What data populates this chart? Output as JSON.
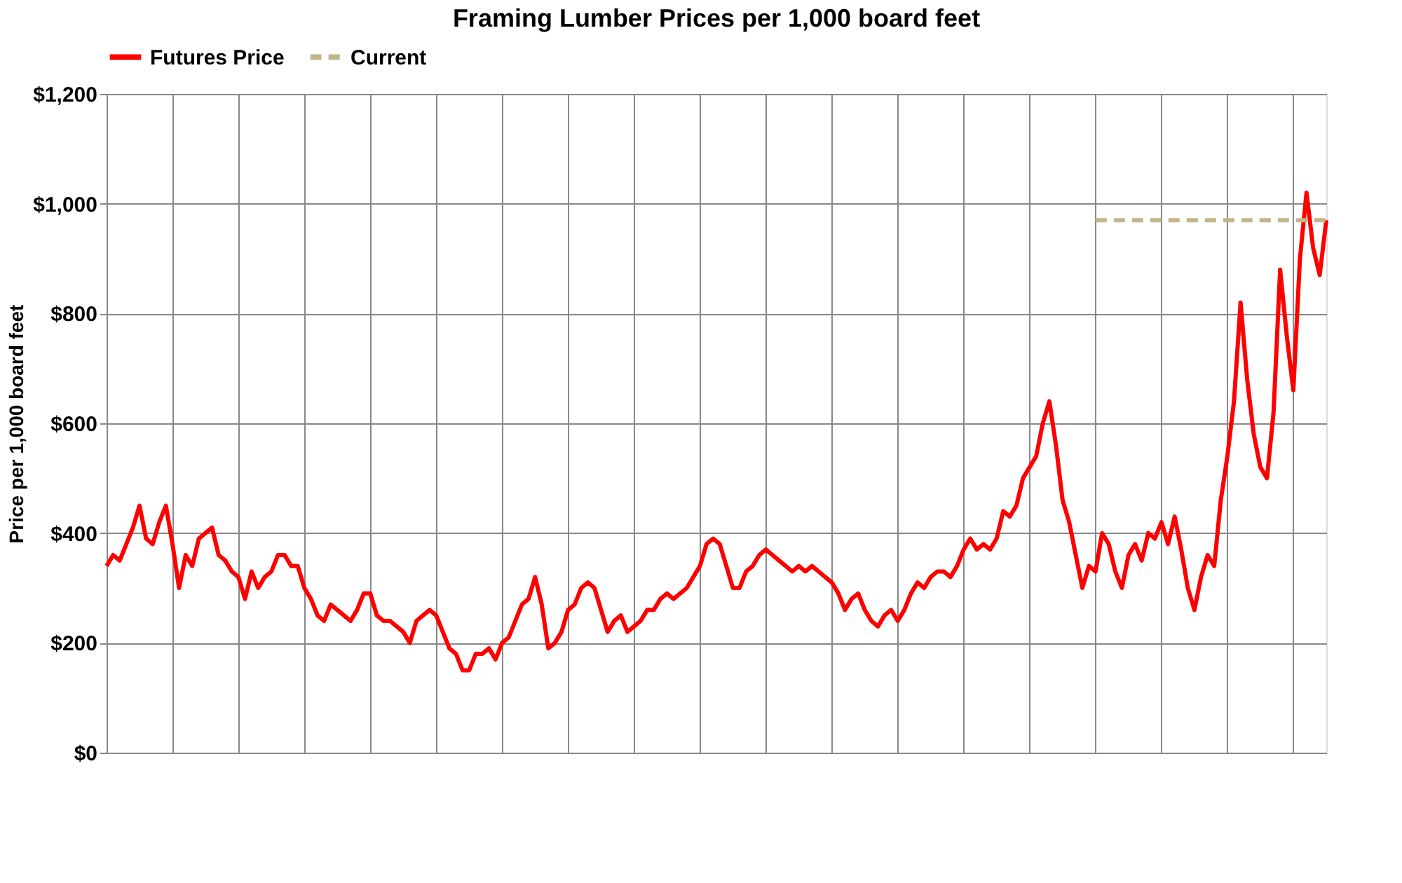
{
  "chart_data": {
    "type": "line",
    "title": "Framing Lumber Prices per 1,000 board feet",
    "ylabel": "Price per 1,000 board feet",
    "ylim": [
      0,
      1200
    ],
    "yticks": [
      {
        "value": 0,
        "label": "$0"
      },
      {
        "value": 200,
        "label": "$200"
      },
      {
        "value": 400,
        "label": "$400"
      },
      {
        "value": 600,
        "label": "$600"
      },
      {
        "value": 800,
        "label": "$800"
      },
      {
        "value": 1000,
        "label": "$1,000"
      },
      {
        "value": 1200,
        "label": "$1,200"
      }
    ],
    "categories": [
      null,
      null,
      null,
      null,
      null,
      null,
      null,
      null,
      null,
      null,
      null,
      null,
      null,
      null,
      null,
      null,
      null,
      null,
      null,
      null,
      null,
      null,
      null,
      null,
      null,
      null,
      null,
      null,
      null,
      null,
      null,
      null,
      null,
      null,
      null,
      null,
      null,
      null,
      null,
      null,
      null,
      null,
      null,
      null,
      null,
      null,
      null,
      null,
      null,
      null,
      null,
      null,
      null,
      null,
      null,
      null,
      null,
      null,
      null,
      null,
      null,
      null,
      null,
      null,
      null,
      null,
      null,
      null,
      null,
      null,
      null,
      null,
      null,
      null,
      null,
      null,
      null,
      null,
      null,
      null,
      null,
      null,
      null,
      null,
      null,
      null,
      null,
      null,
      null,
      null,
      null,
      null,
      null,
      null,
      null,
      null,
      null,
      null,
      null,
      null,
      null,
      null,
      null,
      null,
      null,
      null,
      null,
      null,
      null,
      null,
      null,
      null,
      null,
      null,
      null,
      null,
      null,
      null,
      null,
      null,
      null,
      null,
      null,
      null,
      null,
      null,
      null,
      null,
      null,
      null,
      null,
      null,
      null,
      null,
      null,
      null,
      null,
      null,
      null,
      null,
      null,
      null,
      null,
      null,
      null,
      null,
      null,
      null,
      null,
      null,
      null,
      null,
      null,
      null,
      null,
      null,
      null,
      null,
      null,
      null,
      null,
      null,
      null,
      null,
      null,
      null,
      null,
      null,
      null,
      null,
      null,
      null,
      null,
      null,
      null,
      null,
      null,
      null,
      null,
      null,
      null,
      null,
      null,
      null,
      null,
      null
    ],
    "grid": true,
    "legend": "top",
    "marker": "none",
    "series": [
      {
        "name": "Futures Price",
        "color": "#ff0000",
        "line_style": "solid",
        "values": [
          340,
          360,
          350,
          380,
          410,
          450,
          390,
          380,
          420,
          450,
          380,
          300,
          360,
          340,
          390,
          400,
          410,
          360,
          350,
          330,
          320,
          280,
          330,
          300,
          320,
          330,
          360,
          360,
          340,
          340,
          300,
          280,
          250,
          240,
          270,
          260,
          250,
          240,
          260,
          290,
          290,
          250,
          240,
          240,
          230,
          220,
          200,
          240,
          250,
          260,
          250,
          220,
          190,
          180,
          150,
          150,
          180,
          180,
          190,
          170,
          200,
          210,
          240,
          270,
          280,
          320,
          270,
          190,
          200,
          220,
          260,
          270,
          300,
          310,
          300,
          260,
          220,
          240,
          250,
          220,
          230,
          240,
          260,
          260,
          280,
          290,
          280,
          290,
          300,
          320,
          340,
          380,
          390,
          380,
          340,
          300,
          300,
          330,
          340,
          360,
          370,
          360,
          350,
          340,
          330,
          340,
          330,
          340,
          330,
          320,
          310,
          290,
          260,
          280,
          290,
          260,
          240,
          230,
          250,
          260,
          240,
          260,
          290,
          310,
          300,
          320,
          330,
          330,
          320,
          340,
          370,
          390,
          370,
          380,
          370,
          390,
          440,
          430,
          450,
          500,
          520,
          540,
          600,
          640,
          560,
          460,
          420,
          360,
          300,
          340,
          330,
          400,
          380,
          330,
          300,
          360,
          380,
          350,
          400,
          390,
          420,
          380,
          430,
          370,
          300,
          260,
          320,
          360,
          340,
          460,
          540,
          640,
          820,
          680,
          580,
          520,
          500,
          620,
          880,
          760,
          660,
          900,
          1020,
          920,
          870,
          970
        ]
      },
      {
        "name": "Current",
        "color": "#c4b48a",
        "line_style": "dashed",
        "values": [
          null,
          null,
          null,
          null,
          null,
          null,
          null,
          null,
          null,
          null,
          null,
          null,
          null,
          null,
          null,
          null,
          null,
          null,
          null,
          null,
          null,
          null,
          null,
          null,
          null,
          null,
          null,
          null,
          null,
          null,
          null,
          null,
          null,
          null,
          null,
          null,
          null,
          null,
          null,
          null,
          null,
          null,
          null,
          null,
          null,
          null,
          null,
          null,
          null,
          null,
          null,
          null,
          null,
          null,
          null,
          null,
          null,
          null,
          null,
          null,
          null,
          null,
          null,
          null,
          null,
          null,
          null,
          null,
          null,
          null,
          null,
          null,
          null,
          null,
          null,
          null,
          null,
          null,
          null,
          null,
          null,
          null,
          null,
          null,
          null,
          null,
          null,
          null,
          null,
          null,
          null,
          null,
          null,
          null,
          null,
          null,
          null,
          null,
          null,
          null,
          null,
          null,
          null,
          null,
          null,
          null,
          null,
          null,
          null,
          null,
          null,
          null,
          null,
          null,
          null,
          null,
          null,
          null,
          null,
          null,
          null,
          null,
          null,
          null,
          null,
          null,
          null,
          null,
          null,
          null,
          null,
          null,
          null,
          null,
          null,
          null,
          null,
          null,
          null,
          null,
          null,
          null,
          null,
          null,
          null,
          null,
          null,
          null,
          null,
          null,
          970,
          970,
          970,
          970,
          970,
          970,
          970,
          970,
          970,
          970,
          970,
          970,
          970,
          970,
          970,
          970,
          970,
          970,
          970,
          970,
          970,
          970,
          970,
          970,
          970,
          970,
          970,
          970,
          970,
          970,
          970,
          970,
          970,
          970,
          970,
          970
        ]
      }
    ]
  }
}
